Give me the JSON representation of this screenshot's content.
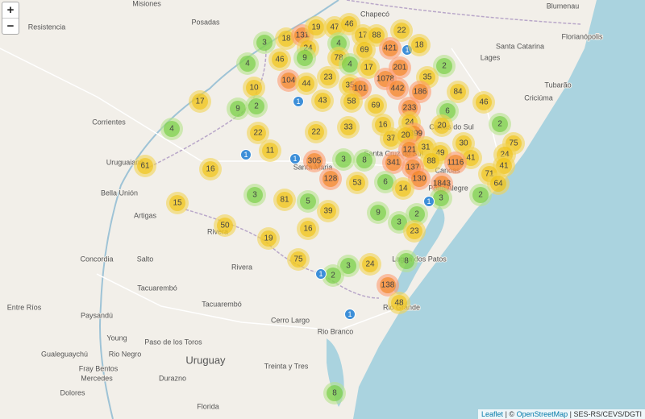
{
  "zoom_controls": [
    "+",
    "−"
  ],
  "place_labels": [
    "Misiones",
    "Posadas",
    "Chapecó",
    "Blumenau",
    "Resistencia",
    "Florianópolis",
    "Santa Catarina",
    "Lages",
    "Tubarão",
    "Criciúma",
    "Corrientes",
    "Caxias do Sul",
    "Santa Cruz do Sul",
    "Santa Maria",
    "Uruguaiana",
    "Bella Unión",
    "Artigas",
    "Canoas",
    "Porto Alegre",
    "Lagoa dos Patos",
    "Rivera",
    "Salto",
    "Rivera",
    "Concordia",
    "Tacuarembó",
    "Tacuarembó",
    "Entre Ríos",
    "Paysandú",
    "Young",
    "Cerro Largo",
    "Rio Branco",
    "Rio Grande",
    "Paso de los Toros",
    "Rio Negro",
    "Uruguay",
    "Treinta y Tres",
    "Gualeguaychú",
    "Fray Bentos",
    "Mercedes",
    "Durazno",
    "Dolores",
    "Florida"
  ],
  "clusters": [
    18,
    131,
    19,
    47,
    46,
    17,
    88,
    22,
    3,
    4,
    24,
    69,
    421,
    1,
    18,
    46,
    9,
    78,
    4,
    4,
    17,
    201,
    2,
    23,
    104,
    44,
    35,
    101,
    1078,
    35,
    10,
    442,
    186,
    84,
    1,
    43,
    58,
    69,
    233,
    6,
    46,
    17,
    9,
    2,
    16,
    24,
    1399,
    20,
    2,
    4,
    22,
    22,
    33,
    37,
    20,
    30,
    75,
    11,
    1,
    1,
    121,
    31,
    49,
    41,
    24,
    305,
    3,
    8,
    341,
    88,
    1116,
    41,
    61,
    16,
    137,
    71,
    128,
    53,
    6,
    130,
    1843,
    64,
    14,
    3,
    81,
    5,
    3,
    1,
    2,
    15,
    39,
    9,
    2,
    3,
    50,
    16,
    23,
    19,
    75,
    24,
    8,
    3,
    2,
    1,
    138,
    48,
    1,
    8
  ],
  "attribution": {
    "leaflet": "Leaflet",
    "mid": "| ©",
    "osm": "OpenStreetMap",
    "source": "| SES-RS/CEVS/DGTI"
  }
}
